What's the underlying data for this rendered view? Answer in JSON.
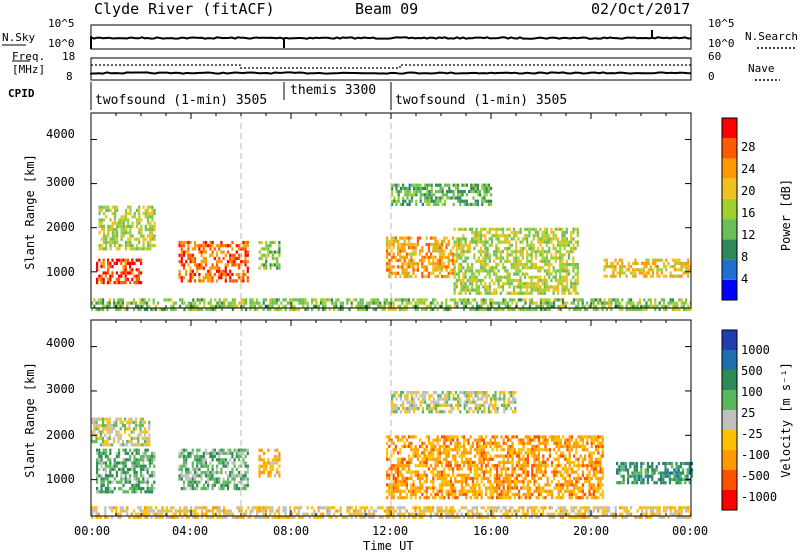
{
  "header": {
    "station": "Clyde River (fitACF)",
    "beam": "Beam 09",
    "date": "02/Oct/2017"
  },
  "noise_panel": {
    "left_label": "N.Sky",
    "left_ticks": [
      "10^5",
      "10^0"
    ],
    "right_label": "N.Search",
    "right_ticks": [
      "10^5",
      "10^0"
    ]
  },
  "freq_panel": {
    "left_label_1": "Freq.",
    "left_label_2": "[MHz]",
    "left_ticks": [
      "18",
      "8"
    ],
    "right_label": "Nave",
    "right_ticks": [
      "60",
      "0"
    ]
  },
  "cpid": {
    "label": "CPID",
    "segments": [
      {
        "name": "twofsound (1-min) 3505",
        "start_hour": 0,
        "end_hour": 8
      },
      {
        "name": "themis 3300",
        "start_hour": 8,
        "end_hour": 8.2
      },
      {
        "name": "twofsound (1-min) 3505",
        "start_hour": 12,
        "end_hour": 24
      }
    ]
  },
  "power_panel": {
    "ylabel": "Slant Range [km]",
    "yticks": [
      "4000",
      "3000",
      "2000",
      "1000"
    ],
    "colorbar_label": "Power [dB]",
    "colorbar_ticks": [
      "28",
      "24",
      "20",
      "16",
      "12",
      "8",
      "4"
    ],
    "colors": [
      "#0000ff",
      "#1e6fd0",
      "#2e8b57",
      "#6bbf59",
      "#a0d030",
      "#f0c020",
      "#ff9900",
      "#ff5a00",
      "#ff0000"
    ]
  },
  "velocity_panel": {
    "ylabel": "Slant Range [km]",
    "yticks": [
      "4000",
      "3000",
      "2000",
      "1000"
    ],
    "colorbar_label": "Velocity [m s⁻¹]",
    "colorbar_ticks": [
      "1000",
      "500",
      "100",
      "25",
      "-25",
      "-100",
      "-500",
      "-1000"
    ],
    "colors": [
      "#1e3fb0",
      "#1f6fb0",
      "#2e8b57",
      "#5cb85c",
      "#c0c0c0",
      "#ffc000",
      "#ff9900",
      "#ff5000",
      "#ff0000"
    ]
  },
  "xaxis": {
    "label": "Time UT",
    "ticks": [
      "00:00",
      "04:00",
      "08:00",
      "12:00",
      "16:00",
      "20:00",
      "00:00"
    ]
  },
  "chart_data": [
    {
      "type": "heatmap",
      "title": "Clyde River (fitACF) Beam 09 02/Oct/2017",
      "quantity": "Power",
      "units": "dB",
      "xlabel": "Time UT",
      "ylabel": "Slant Range [km]",
      "xlim_hours": [
        0,
        24
      ],
      "ylim": [
        180,
        4600
      ],
      "colorbar_range": [
        0,
        32
      ],
      "regions": [
        {
          "t0": 0.2,
          "t1": 2.0,
          "r0": 750,
          "r1": 1300,
          "level": 28
        },
        {
          "t0": 0.3,
          "t1": 2.5,
          "r0": 1500,
          "r1": 2500,
          "level": 16
        },
        {
          "t0": 3.5,
          "t1": 6.3,
          "r0": 800,
          "r1": 1700,
          "level": 26
        },
        {
          "t0": 6.7,
          "t1": 7.5,
          "r0": 1100,
          "r1": 1700,
          "level": 14
        },
        {
          "t0": 11.8,
          "t1": 14.5,
          "r0": 900,
          "r1": 1800,
          "level": 22
        },
        {
          "t0": 14.5,
          "t1": 19.5,
          "r0": 500,
          "r1": 2000,
          "level": 16
        },
        {
          "t0": 12.0,
          "t1": 16.0,
          "r0": 2500,
          "r1": 3000,
          "level": 12
        },
        {
          "t0": 20.5,
          "t1": 24.0,
          "r0": 900,
          "r1": 1300,
          "level": 20
        },
        {
          "t0": 0.0,
          "t1": 24.0,
          "r0": 180,
          "r1": 400,
          "level": 14
        }
      ]
    },
    {
      "type": "heatmap",
      "quantity": "Velocity",
      "units": "m s^-1",
      "xlabel": "Time UT",
      "ylabel": "Slant Range [km]",
      "xlim_hours": [
        0,
        24
      ],
      "ylim": [
        180,
        4600
      ],
      "colorbar_range": [
        -1000,
        1000
      ],
      "regions": [
        {
          "t0": 0.2,
          "t1": 2.5,
          "r0": 700,
          "r1": 1700,
          "level": 300
        },
        {
          "t0": 0.0,
          "t1": 2.3,
          "r0": 1800,
          "r1": 2400,
          "level": 0
        },
        {
          "t0": 3.5,
          "t1": 6.3,
          "r0": 800,
          "r1": 1700,
          "level": 200
        },
        {
          "t0": 6.7,
          "t1": 7.5,
          "r0": 1100,
          "r1": 1700,
          "level": -300
        },
        {
          "t0": 11.8,
          "t1": 20.5,
          "r0": 600,
          "r1": 2000,
          "level": -400
        },
        {
          "t0": 12.0,
          "t1": 17.0,
          "r0": 2500,
          "r1": 3000,
          "level": 0
        },
        {
          "t0": 21.0,
          "t1": 24.0,
          "r0": 900,
          "r1": 1400,
          "level": 400
        },
        {
          "t0": 0.0,
          "t1": 24.0,
          "r0": 180,
          "r1": 400,
          "level": -150
        }
      ]
    }
  ]
}
